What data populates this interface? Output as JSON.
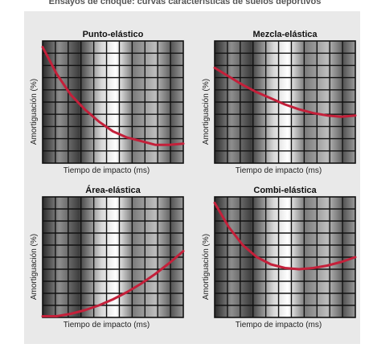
{
  "figure": {
    "top_caption": "Ensayos de choque: curvas características de suelos deportivos",
    "colors": {
      "background_panel": "#e9e9e9",
      "grid_line": "#111111",
      "curve": "#c4203a"
    }
  },
  "chart_data": [
    {
      "type": "line",
      "title": "Punto-elástico",
      "xlabel": "Tiempo de impacto (ms)",
      "ylabel": "Amortiguación (%)",
      "x": [
        0.0,
        0.1,
        0.2,
        0.3,
        0.4,
        0.5,
        0.6,
        0.7,
        0.8,
        0.9,
        1.0
      ],
      "series": [
        {
          "values": [
            0.95,
            0.73,
            0.56,
            0.44,
            0.34,
            0.26,
            0.21,
            0.18,
            0.15,
            0.15,
            0.16
          ]
        }
      ],
      "xlim": [
        0,
        1
      ],
      "ylim": [
        0,
        1
      ],
      "grid": true
    },
    {
      "type": "line",
      "title": "Mezcla-elástica",
      "xlabel": "Tiempo de impacto (ms)",
      "ylabel": "Amortiguación (%)",
      "x": [
        0.0,
        0.1,
        0.2,
        0.3,
        0.4,
        0.5,
        0.6,
        0.7,
        0.8,
        0.9,
        1.0
      ],
      "series": [
        {
          "values": [
            0.78,
            0.71,
            0.64,
            0.58,
            0.53,
            0.48,
            0.44,
            0.41,
            0.39,
            0.38,
            0.39
          ]
        }
      ],
      "xlim": [
        0,
        1
      ],
      "ylim": [
        0,
        1
      ],
      "grid": true
    },
    {
      "type": "line",
      "title": "Área-elástica",
      "xlabel": "Tiempo de impacto (ms)",
      "ylabel": "Amortiguación (%)",
      "x": [
        0.0,
        0.1,
        0.2,
        0.3,
        0.4,
        0.5,
        0.6,
        0.7,
        0.8,
        0.9,
        1.0
      ],
      "series": [
        {
          "values": [
            0.01,
            0.01,
            0.03,
            0.06,
            0.1,
            0.15,
            0.21,
            0.28,
            0.36,
            0.45,
            0.55
          ]
        }
      ],
      "xlim": [
        0,
        1
      ],
      "ylim": [
        0,
        1
      ],
      "grid": true
    },
    {
      "type": "line",
      "title": "Combi-elástica",
      "xlabel": "Tiempo de impacto (ms)",
      "ylabel": "Amortiguación (%)",
      "x": [
        0.0,
        0.1,
        0.2,
        0.3,
        0.4,
        0.5,
        0.6,
        0.7,
        0.8,
        0.9,
        1.0
      ],
      "series": [
        {
          "values": [
            0.95,
            0.75,
            0.6,
            0.5,
            0.44,
            0.41,
            0.4,
            0.41,
            0.43,
            0.46,
            0.5
          ]
        }
      ],
      "xlim": [
        0,
        1
      ],
      "ylim": [
        0,
        1
      ],
      "grid": true
    }
  ]
}
